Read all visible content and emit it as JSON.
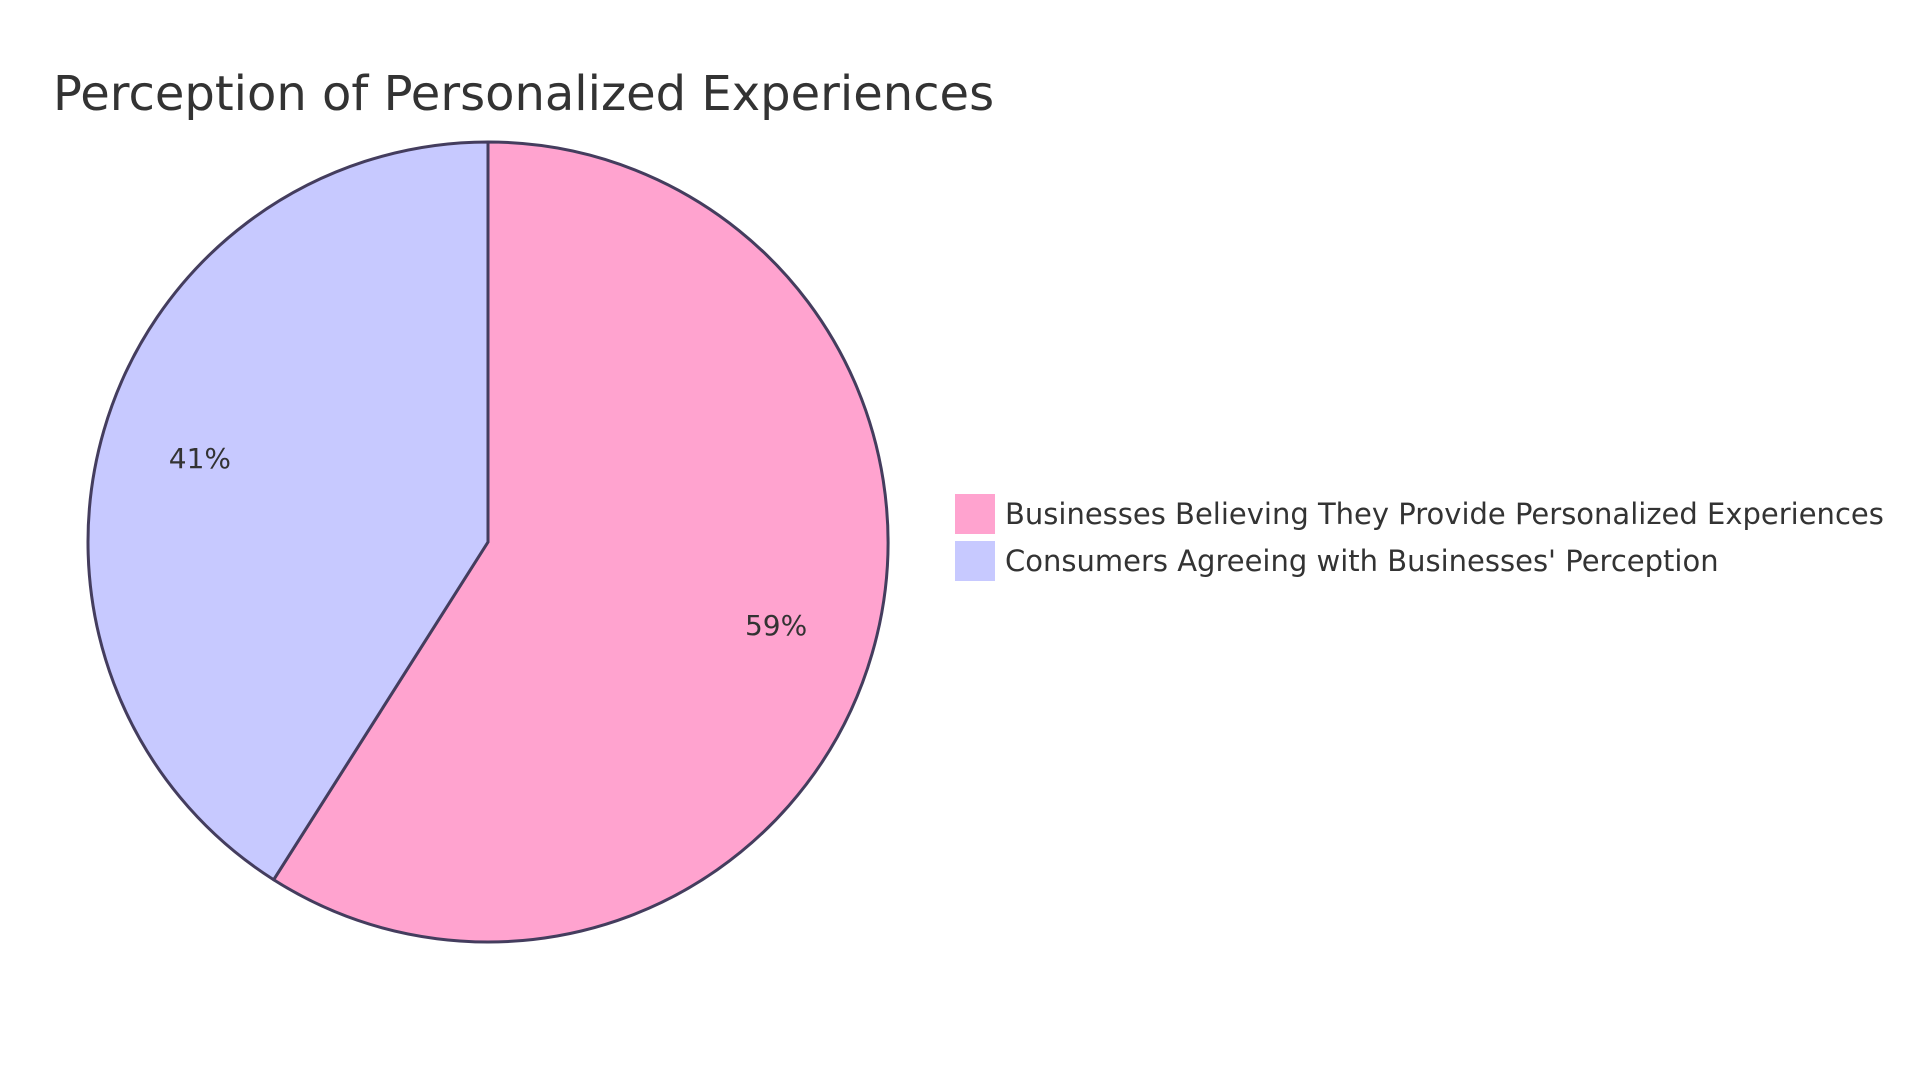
{
  "chart_data": {
    "type": "pie",
    "title": "Perception of Personalized Experiences",
    "slices": [
      {
        "label": "Businesses Believing They Provide Personalized Experiences",
        "value": 59,
        "display": "59%",
        "color": "#ffa3cf"
      },
      {
        "label": "Consumers Agreeing with Businesses' Perception",
        "value": 41,
        "display": "41%",
        "color": "#c7c9ff"
      }
    ],
    "legend_position": "right",
    "stroke_color": "#443d5e"
  }
}
